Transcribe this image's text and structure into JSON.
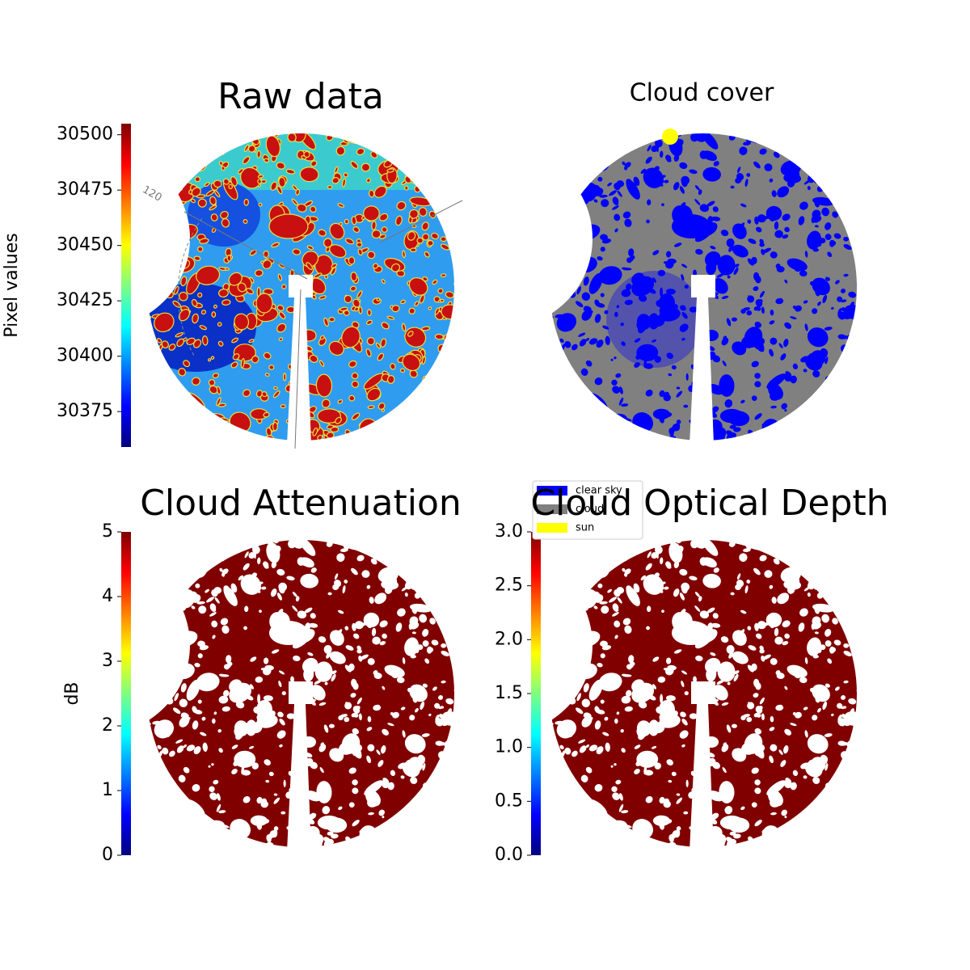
{
  "chart_data": [
    {
      "type": "image",
      "title": "Raw data",
      "colormap": "jet",
      "ylabel": "Pixel values",
      "ylim": [
        30359,
        30505
      ],
      "yticks": [
        30375,
        30400,
        30425,
        30450,
        30475,
        30500
      ],
      "annotations": [
        "120"
      ]
    },
    {
      "type": "categorical-image",
      "title": "Cloud cover",
      "series": [
        {
          "name": "clear sky",
          "color": "#0000ff"
        },
        {
          "name": "cloud",
          "color": "#808080"
        },
        {
          "name": "sun",
          "color": "#ffff00"
        }
      ]
    },
    {
      "type": "image",
      "title": "Cloud Attenuation",
      "colormap": "jet",
      "ylabel": "dB",
      "ylim": [
        0,
        5
      ],
      "yticks": [
        0,
        1,
        2,
        3,
        4,
        5
      ]
    },
    {
      "type": "image",
      "title": "Cloud Optical Depth",
      "colormap": "jet",
      "ylim": [
        0,
        3
      ],
      "yticks": [
        {
          "value": 0,
          "label": "0.0"
        },
        {
          "value": 0.5,
          "label": "0.5"
        },
        {
          "value": 1,
          "label": "1.0"
        },
        {
          "value": 1.5,
          "label": "1.5"
        },
        {
          "value": 2,
          "label": "2.0"
        },
        {
          "value": 2.5,
          "label": "2.5"
        },
        {
          "value": 3,
          "label": "3.0"
        }
      ]
    }
  ]
}
